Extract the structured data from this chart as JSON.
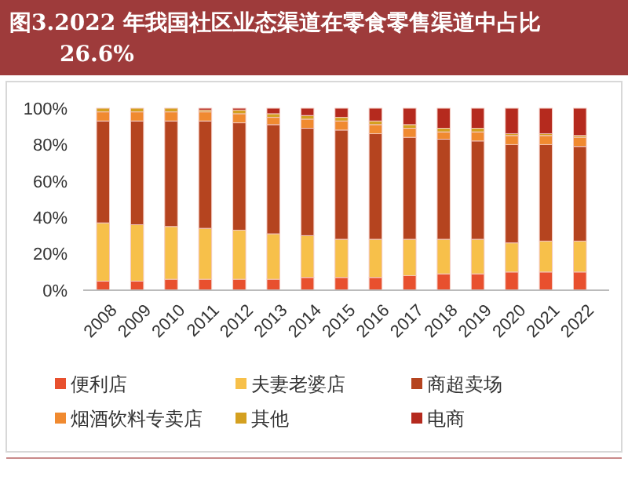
{
  "chart_data": {
    "type": "bar",
    "stacked": true,
    "title": "图3.2022 年我国社区业态渠道在零食零售渠道中占比26.6%",
    "categories": [
      "2008",
      "2009",
      "2010",
      "2011",
      "2012",
      "2013",
      "2014",
      "2015",
      "2016",
      "2017",
      "2018",
      "2019",
      "2020",
      "2021",
      "2022"
    ],
    "series": [
      {
        "name": "便利店",
        "color": "#e8502e",
        "values": [
          5,
          5,
          6,
          6,
          6,
          6,
          7,
          7,
          7,
          8,
          9,
          9,
          10,
          10,
          10
        ]
      },
      {
        "name": "夫妻老婆店",
        "color": "#f7c04a",
        "values": [
          32,
          31,
          29,
          28,
          27,
          25,
          23,
          21,
          21,
          20,
          19,
          19,
          16,
          17,
          17
        ]
      },
      {
        "name": "商超卖场",
        "color": "#b5441f",
        "values": [
          56,
          57,
          58,
          59,
          59,
          60,
          59,
          60,
          58,
          56,
          55,
          54,
          54,
          53,
          52
        ]
      },
      {
        "name": "烟酒饮料专卖店",
        "color": "#f08a30",
        "values": [
          5,
          5,
          5,
          5,
          5,
          4,
          5,
          5,
          5,
          5,
          4,
          5,
          5,
          5,
          5
        ]
      },
      {
        "name": "其他",
        "color": "#d4a020",
        "values": [
          2,
          2,
          2,
          1,
          2,
          2,
          2,
          2,
          2,
          2,
          2,
          2,
          1,
          1,
          1
        ]
      },
      {
        "name": "电商",
        "color": "#b52a1e",
        "values": [
          0,
          0,
          0,
          1,
          1,
          3,
          4,
          5,
          7,
          9,
          11,
          11,
          14,
          14,
          15
        ]
      }
    ],
    "ylim": [
      0,
      100
    ],
    "yticks": [
      {
        "value": 0,
        "label": "0%"
      },
      {
        "value": 20,
        "label": "20%"
      },
      {
        "value": 40,
        "label": "40%"
      },
      {
        "value": 60,
        "label": "60%"
      },
      {
        "value": 80,
        "label": "80%"
      },
      {
        "value": 100,
        "label": "100%"
      }
    ],
    "grid": false,
    "legend": "bottom"
  }
}
